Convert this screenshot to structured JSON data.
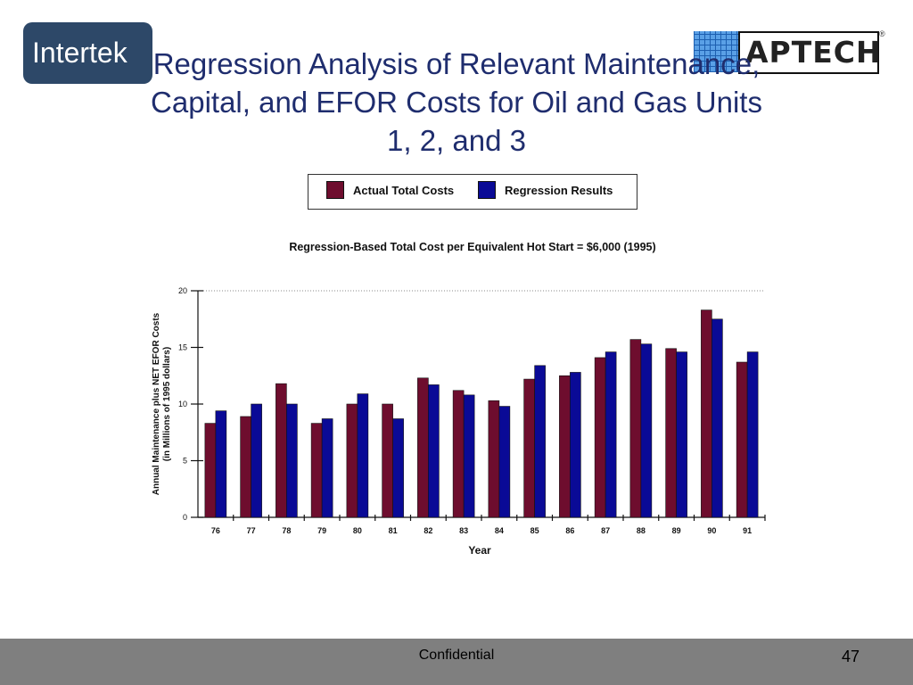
{
  "logos": {
    "left": "Intertek",
    "right": "APTECH",
    "right_mark": "®"
  },
  "title_lines": [
    "Regression Analysis of Relevant Maintenance,",
    "Capital, and EFOR Costs for Oil and Gas Units",
    "1, 2, and 3"
  ],
  "chart_data": {
    "type": "bar",
    "title": "Regression-Based Total Cost per Equivalent Hot Start = $6,000 (1995)",
    "xlabel": "Year",
    "ylabel_lines": [
      "Annual Maintenance plus NET EFOR Costs",
      "(in Millions of 1995 dollars)"
    ],
    "ylim": [
      0,
      20
    ],
    "yticks": [
      0,
      5,
      10,
      15,
      20
    ],
    "grid": "dotted-top",
    "legend_position": "top",
    "categories": [
      "76",
      "77",
      "78",
      "79",
      "80",
      "81",
      "82",
      "83",
      "84",
      "85",
      "86",
      "87",
      "88",
      "89",
      "90",
      "91"
    ],
    "series": [
      {
        "name": "Actual Total Costs",
        "color": "#6e0d2e",
        "values": [
          8.3,
          8.9,
          11.8,
          8.3,
          10.0,
          10.0,
          12.3,
          11.2,
          10.3,
          12.2,
          12.5,
          14.1,
          15.7,
          14.9,
          18.3,
          13.7
        ]
      },
      {
        "name": "Regression Results",
        "color": "#0a0a96",
        "values": [
          9.4,
          10.0,
          10.0,
          8.7,
          10.9,
          8.7,
          11.7,
          10.8,
          9.8,
          13.4,
          12.8,
          14.6,
          15.3,
          14.6,
          17.5,
          14.6
        ]
      }
    ]
  },
  "footer": {
    "label": "Confidential",
    "page": "47"
  }
}
